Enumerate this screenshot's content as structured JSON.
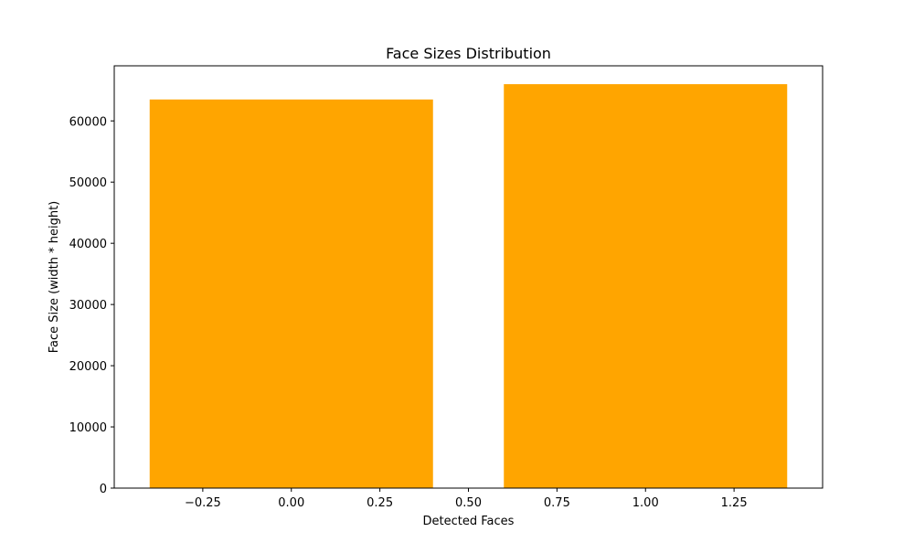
{
  "chart_data": {
    "type": "bar",
    "title": "Face Sizes Distribution",
    "xlabel": "Detected Faces",
    "ylabel": "Face Size (width * height)",
    "x": [
      0,
      1
    ],
    "values": [
      63500,
      66000
    ],
    "bar_width": 0.8,
    "bar_color": "#ffa500",
    "xlim": [
      -0.5,
      1.5
    ],
    "ylim": [
      0,
      69000
    ],
    "xticks": [
      -0.25,
      0.0,
      0.25,
      0.5,
      0.75,
      1.0,
      1.25
    ],
    "xtick_labels": [
      "−0.25",
      "0.00",
      "0.25",
      "0.50",
      "0.75",
      "1.00",
      "1.25"
    ],
    "yticks": [
      0,
      10000,
      20000,
      30000,
      40000,
      50000,
      60000
    ],
    "ytick_labels": [
      "0",
      "10000",
      "20000",
      "30000",
      "40000",
      "50000",
      "60000"
    ],
    "grid": false,
    "legend": false
  }
}
